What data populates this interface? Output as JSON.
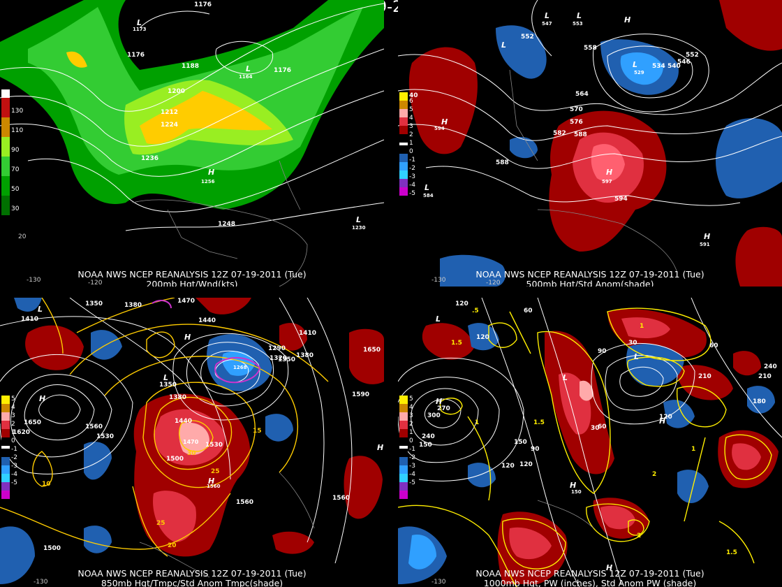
{
  "title": "12Z 07-19-2011 (Tue)",
  "panels": [
    {
      "caption1": "NOAA NWS NCEP REANALYSIS 12Z 07-19-2011 (Tue)",
      "caption2": "200mb Hgt/Wnd(kts)",
      "legend_values": [
        "130",
        "110",
        "90",
        "70",
        "50",
        "30"
      ],
      "contour_labels": [
        "1176",
        "1173",
        "1176",
        "1188",
        "1164",
        "1176",
        "1200",
        "1212",
        "1224",
        "1236",
        "1256",
        "1248",
        "1230"
      ],
      "ticks": [
        "-130",
        "-120",
        "20"
      ]
    },
    {
      "caption1": "NOAA NWS NCEP REANALYSIS 12Z 07-19-2011 (Tue)",
      "caption2": "500mb Hgt/Std Anom(shade)",
      "legend_values": [
        "6",
        "5",
        "4",
        "3",
        "2",
        "1",
        "0",
        "-1",
        "-2",
        "-3",
        "-4",
        "-5"
      ],
      "contour_labels": [
        "547",
        "553",
        "552",
        "558",
        "546",
        "552",
        "540",
        "534",
        "529",
        "564",
        "570",
        "576",
        "582",
        "588",
        "588",
        "594",
        "597",
        "594",
        "584",
        "591",
        "40"
      ],
      "ticks": [
        "-130",
        "-120"
      ]
    },
    {
      "caption1": "NOAA NWS NCEP REANALYSIS 12Z 07-19-2011 (Tue)",
      "caption2": "850mb Hgt/Tmpc/Std Anom Tmpc(shade)",
      "legend_values": [
        "5",
        "4",
        "3",
        "2",
        "1",
        "0",
        "-1",
        "-2",
        "-3",
        "-4",
        "-5"
      ],
      "contour_labels": [
        "1350",
        "1380",
        "1410",
        "1470",
        "1440",
        "1410",
        "1650",
        "1290",
        "1320",
        "1350",
        "1380",
        "1268",
        "1350",
        "1380",
        "1590",
        "1440",
        "1470",
        "1530",
        "1500",
        "1560",
        "1560",
        "1650",
        "1620",
        "1560",
        "1530",
        "1500",
        "1560"
      ],
      "temp_labels": [
        "30",
        "25",
        "20",
        "15",
        "10",
        "25"
      ],
      "ticks": [
        "-130"
      ]
    },
    {
      "caption1": "NOAA NWS NCEP REANALYSIS 12Z 07-19-2011 (Tue)",
      "caption2": "1000mb Hgt, PW (inches), Std Anom PW (shade)",
      "legend_values": [
        "5",
        "4",
        "3",
        "2",
        "1",
        "0",
        "-1",
        "-2",
        "-3",
        "-4",
        "-5"
      ],
      "contour_labels": [
        "120",
        "60",
        "120",
        "90",
        "30",
        "60",
        "240",
        "210",
        "270",
        "300",
        "240",
        "180",
        "210",
        "150",
        "120",
        "90",
        "150",
        "120",
        "60",
        "150",
        "30",
        "120"
      ],
      "pw_labels": [
        "1.5",
        "1",
        "2",
        "1.5",
        ".5",
        "1",
        "2",
        "1.5",
        "1"
      ],
      "ticks": [
        "-130"
      ]
    }
  ],
  "colors": {
    "wind_30": "#00a000",
    "wind_50": "#33cc33",
    "wind_70": "#99ee22",
    "wind_90": "#ffcc00",
    "pos_anom": "#a00000",
    "pos_anom2": "#e03040",
    "neg_anom": "#2060b0",
    "neg_anom2": "#30a0ff",
    "temp_contour": "#ffcc00",
    "pw_contour": "#ffee00"
  }
}
